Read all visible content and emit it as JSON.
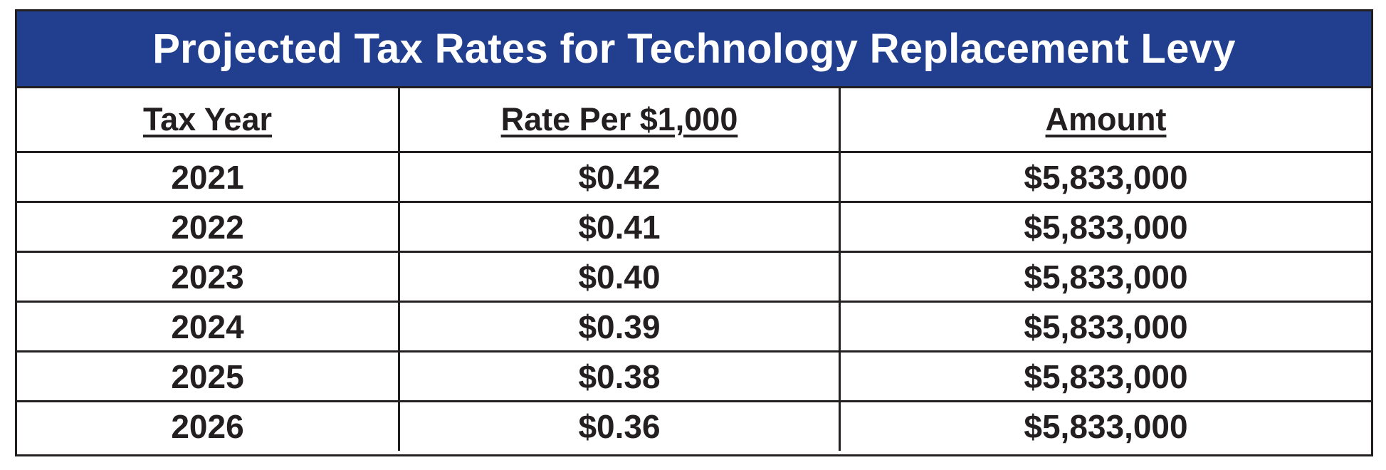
{
  "title": "Projected Tax Rates for Technology Replacement Levy",
  "colors": {
    "title_background": "#223f8f",
    "title_text": "#ffffff",
    "border": "#231f20",
    "body_text": "#231f20"
  },
  "columns": [
    "Tax Year",
    "Rate Per $1,000",
    "Amount"
  ],
  "rows": [
    [
      "2021",
      "$0.42",
      "$5,833,000"
    ],
    [
      "2022",
      "$0.41",
      "$5,833,000"
    ],
    [
      "2023",
      "$0.40",
      "$5,833,000"
    ],
    [
      "2024",
      "$0.39",
      "$5,833,000"
    ],
    [
      "2025",
      "$0.38",
      "$5,833,000"
    ],
    [
      "2026",
      "$0.36",
      "$5,833,000"
    ]
  ]
}
